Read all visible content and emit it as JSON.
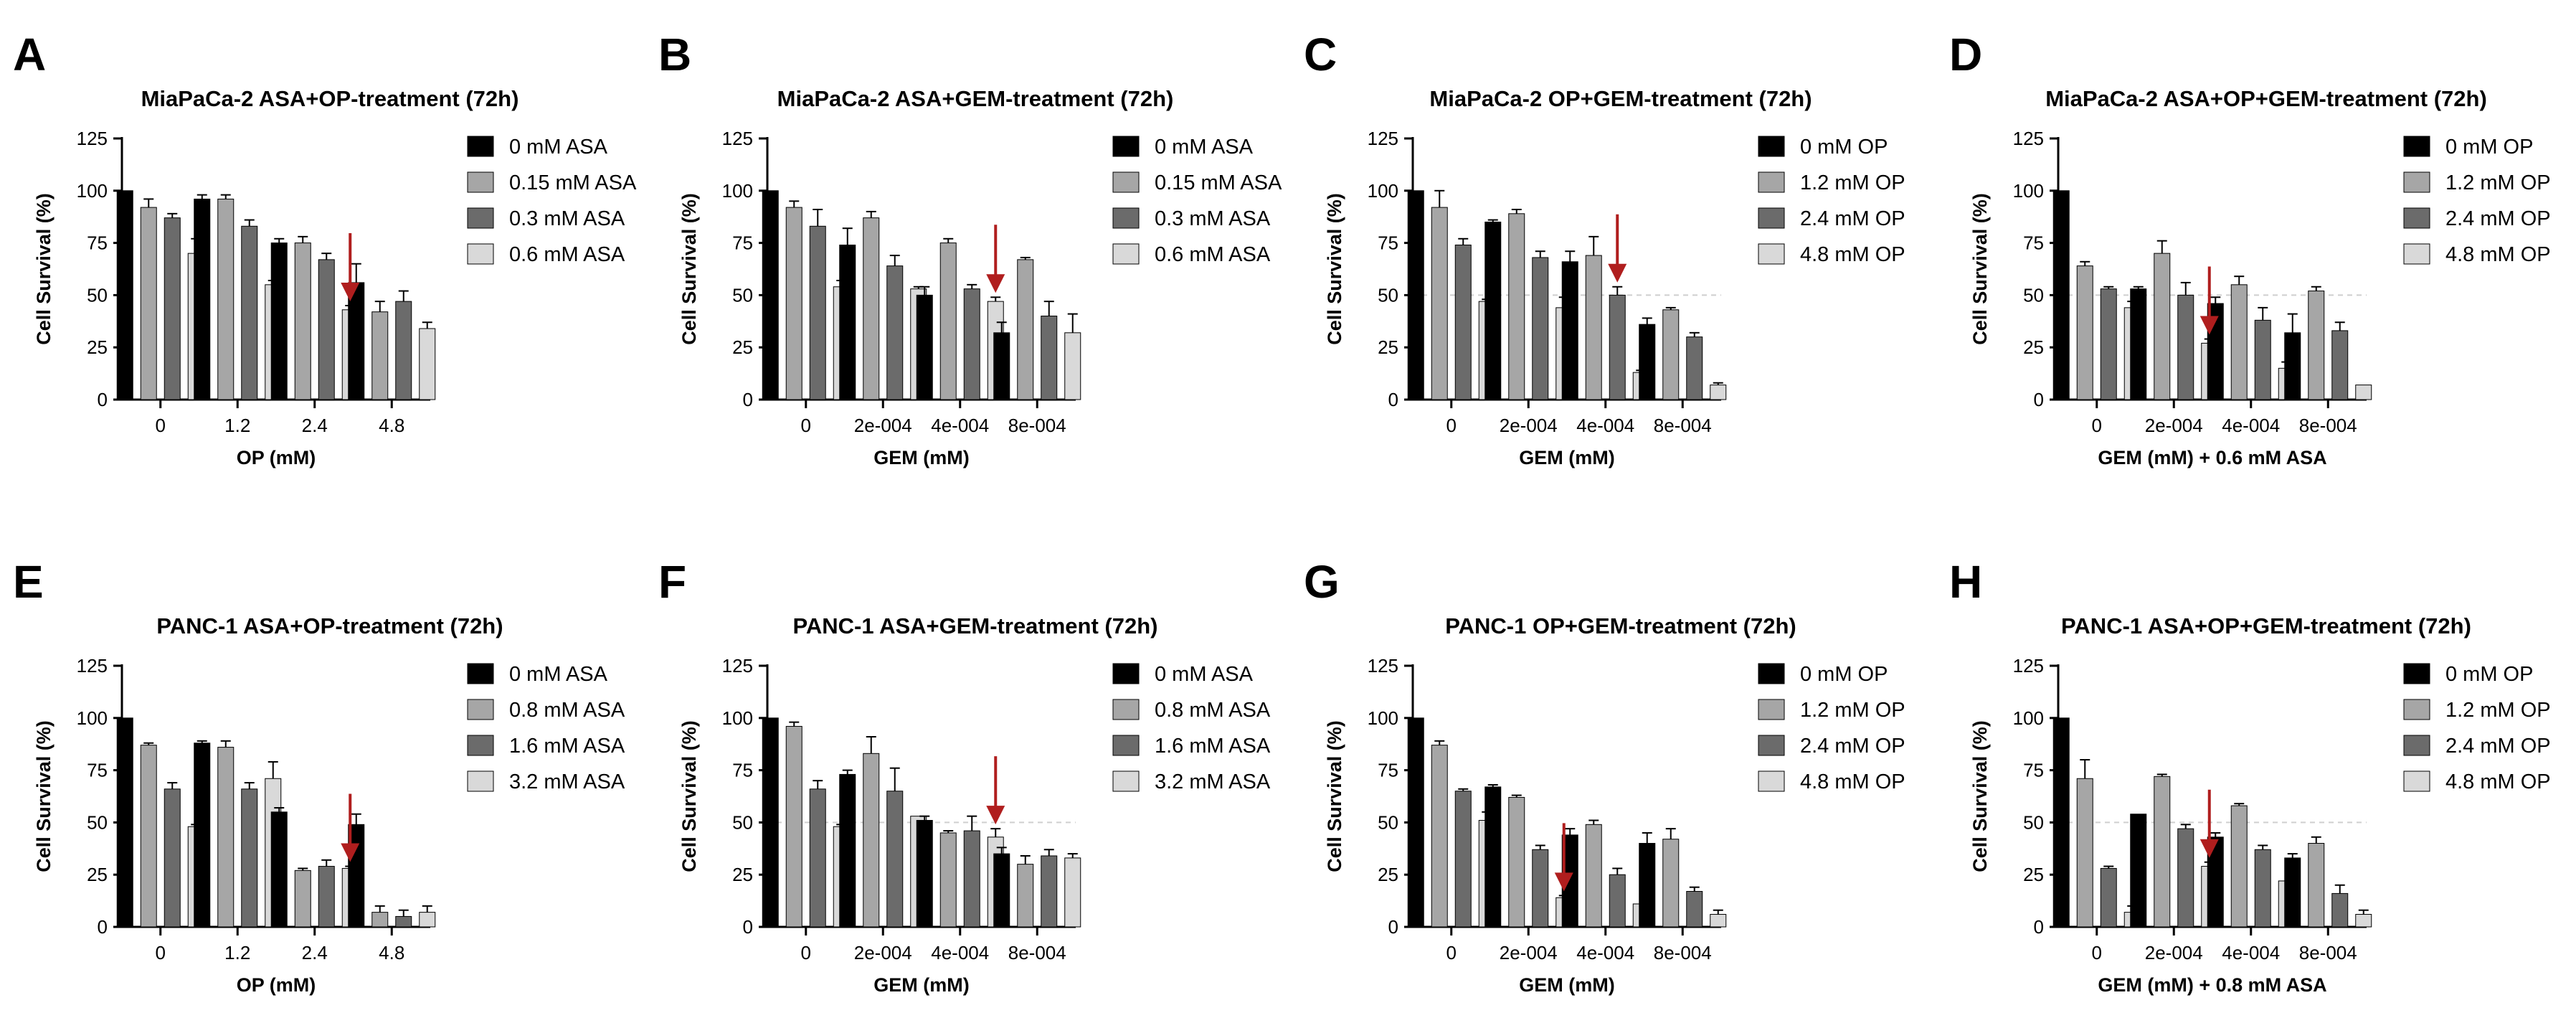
{
  "figure": {
    "panel_count": 8
  },
  "colors": {
    "series": [
      "#000000",
      "#a6a6a6",
      "#6b6b6b",
      "#d9d9d9"
    ],
    "arrow": "#b01e1e",
    "reference_line": "#cfcfcf"
  },
  "chart_data": [
    {
      "panel": "A",
      "type": "bar",
      "title": "MiaPaCa-2 ASA+OP-treatment (72h)",
      "xlabel": "OP (mM)",
      "ylabel": "Cell Survival (%)",
      "ylim": [
        0,
        125
      ],
      "yticks": [
        "0",
        "25",
        "50",
        "75",
        "100",
        "125"
      ],
      "categories": [
        "0",
        "1.2",
        "2.4",
        "4.8"
      ],
      "series": [
        {
          "name": "0 mM ASA",
          "values": [
            100,
            96,
            75,
            56
          ],
          "errors": [
            0,
            2,
            2,
            9
          ]
        },
        {
          "name": "0.15 mM ASA",
          "values": [
            92,
            96,
            75,
            42
          ],
          "errors": [
            4,
            2,
            3,
            5
          ]
        },
        {
          "name": "0.3 mM ASA",
          "values": [
            87,
            83,
            67,
            47
          ],
          "errors": [
            2,
            3,
            3,
            5
          ]
        },
        {
          "name": "0.6 mM ASA",
          "values": [
            70,
            55,
            43,
            34
          ],
          "errors": [
            7,
            2,
            2,
            3
          ]
        }
      ],
      "reference_line": null,
      "arrow": {
        "category_index": 2,
        "series_index": 3
      }
    },
    {
      "panel": "B",
      "type": "bar",
      "title": "MiaPaCa-2 ASA+GEM-treatment (72h)",
      "xlabel": "GEM (mM)",
      "ylabel": "Cell Survival (%)",
      "ylim": [
        0,
        125
      ],
      "yticks": [
        "0",
        "25",
        "50",
        "75",
        "100",
        "125"
      ],
      "categories": [
        "0",
        "2e-004",
        "4e-004",
        "8e-004"
      ],
      "series": [
        {
          "name": "0 mM ASA",
          "values": [
            100,
            74,
            50,
            32
          ],
          "errors": [
            0,
            8,
            4,
            5
          ]
        },
        {
          "name": "0.15 mM ASA",
          "values": [
            92,
            87,
            75,
            67
          ],
          "errors": [
            3,
            3,
            2,
            1
          ]
        },
        {
          "name": "0.3 mM ASA",
          "values": [
            83,
            64,
            53,
            40
          ],
          "errors": [
            8,
            5,
            2,
            7
          ]
        },
        {
          "name": "0.6 mM ASA",
          "values": [
            54,
            53,
            47,
            32
          ],
          "errors": [
            3,
            1,
            2,
            9
          ]
        }
      ],
      "reference_line": null,
      "arrow": {
        "category_index": 2,
        "series_index": 3
      }
    },
    {
      "panel": "C",
      "type": "bar",
      "title": "MiaPaCa-2 OP+GEM-treatment (72h)",
      "xlabel": "GEM (mM)",
      "ylabel": "Cell Survival (%)",
      "ylim": [
        0,
        125
      ],
      "yticks": [
        "0",
        "25",
        "50",
        "75",
        "100",
        "125"
      ],
      "categories": [
        "0",
        "2e-004",
        "4e-004",
        "8e-004"
      ],
      "series": [
        {
          "name": "0 mM OP",
          "values": [
            100,
            85,
            66,
            36
          ],
          "errors": [
            0,
            1,
            5,
            3
          ]
        },
        {
          "name": "1.2 mM OP",
          "values": [
            92,
            89,
            69,
            43
          ],
          "errors": [
            8,
            2,
            9,
            1
          ]
        },
        {
          "name": "2.4 mM OP",
          "values": [
            74,
            68,
            50,
            30
          ],
          "errors": [
            3,
            3,
            4,
            2
          ]
        },
        {
          "name": "4.8 mM OP",
          "values": [
            47,
            44,
            13,
            7
          ],
          "errors": [
            1,
            5,
            1,
            1
          ]
        }
      ],
      "reference_line": 50,
      "arrow": {
        "category_index": 2,
        "series_index": 2
      }
    },
    {
      "panel": "D",
      "type": "bar",
      "title": "MiaPaCa-2 ASA+OP+GEM-treatment (72h)",
      "xlabel": "GEM (mM) + 0.6 mM ASA",
      "ylabel": "Cell Survival (%)",
      "ylim": [
        0,
        125
      ],
      "yticks": [
        "0",
        "25",
        "50",
        "75",
        "100",
        "125"
      ],
      "categories": [
        "0",
        "2e-004",
        "4e-004",
        "8e-004"
      ],
      "series": [
        {
          "name": "0 mM OP",
          "values": [
            100,
            53,
            46,
            32
          ],
          "errors": [
            0,
            1,
            3,
            9
          ]
        },
        {
          "name": "1.2 mM OP",
          "values": [
            64,
            70,
            55,
            52
          ],
          "errors": [
            2,
            6,
            4,
            2
          ]
        },
        {
          "name": "2.4 mM OP",
          "values": [
            53,
            50,
            38,
            33
          ],
          "errors": [
            1,
            6,
            6,
            4
          ]
        },
        {
          "name": "4.8 mM OP",
          "values": [
            44,
            27,
            15,
            7
          ],
          "errors": [
            3,
            2,
            3,
            0
          ]
        }
      ],
      "reference_line": 50,
      "arrow": {
        "category_index": 1,
        "series_index": 3
      }
    },
    {
      "panel": "E",
      "type": "bar",
      "title": "PANC-1 ASA+OP-treatment (72h)",
      "xlabel": "OP (mM)",
      "ylabel": "Cell Survival (%)",
      "ylim": [
        0,
        125
      ],
      "yticks": [
        "0",
        "25",
        "50",
        "75",
        "100",
        "125"
      ],
      "categories": [
        "0",
        "1.2",
        "2.4",
        "4.8"
      ],
      "series": [
        {
          "name": "0 mM ASA",
          "values": [
            100,
            88,
            55,
            49
          ],
          "errors": [
            0,
            1,
            2,
            5
          ]
        },
        {
          "name": "0.8 mM ASA",
          "values": [
            87,
            86,
            27,
            7
          ],
          "errors": [
            1,
            3,
            1,
            3
          ]
        },
        {
          "name": "1.6 mM ASA",
          "values": [
            66,
            66,
            29,
            5
          ],
          "errors": [
            3,
            3,
            3,
            3
          ]
        },
        {
          "name": "3.2 mM ASA",
          "values": [
            48,
            71,
            28,
            7
          ],
          "errors": [
            1,
            8,
            1,
            3
          ]
        }
      ],
      "reference_line": null,
      "arrow": {
        "category_index": 2,
        "series_index": 3
      }
    },
    {
      "panel": "F",
      "type": "bar",
      "title": "PANC-1 ASA+GEM-treatment (72h)",
      "xlabel": "GEM (mM)",
      "ylabel": "Cell Survival (%)",
      "ylim": [
        0,
        125
      ],
      "yticks": [
        "0",
        "25",
        "50",
        "75",
        "100",
        "125"
      ],
      "categories": [
        "0",
        "2e-004",
        "4e-004",
        "8e-004"
      ],
      "series": [
        {
          "name": "0 mM ASA",
          "values": [
            100,
            73,
            51,
            35
          ],
          "errors": [
            0,
            2,
            2,
            3
          ]
        },
        {
          "name": "0.8 mM ASA",
          "values": [
            96,
            83,
            45,
            30
          ],
          "errors": [
            2,
            8,
            1,
            4
          ]
        },
        {
          "name": "1.6 mM ASA",
          "values": [
            66,
            65,
            46,
            34
          ],
          "errors": [
            4,
            11,
            7,
            3
          ]
        },
        {
          "name": "3.2 mM ASA",
          "values": [
            48,
            53,
            43,
            33
          ],
          "errors": [
            1,
            0,
            4,
            2
          ]
        }
      ],
      "reference_line": 50,
      "arrow": {
        "category_index": 2,
        "series_index": 3
      }
    },
    {
      "panel": "G",
      "type": "bar",
      "title": "PANC-1 OP+GEM-treatment (72h)",
      "xlabel": "GEM (mM)",
      "ylabel": "Cell Survival (%)",
      "ylim": [
        0,
        125
      ],
      "yticks": [
        "0",
        "25",
        "50",
        "75",
        "100",
        "125"
      ],
      "categories": [
        "0",
        "2e-004",
        "4e-004",
        "8e-004"
      ],
      "series": [
        {
          "name": "0 mM OP",
          "values": [
            100,
            67,
            44,
            40
          ],
          "errors": [
            0,
            1,
            3,
            5
          ]
        },
        {
          "name": "1.2 mM OP",
          "values": [
            87,
            62,
            49,
            42
          ],
          "errors": [
            2,
            1,
            2,
            5
          ]
        },
        {
          "name": "2.4 mM OP",
          "values": [
            65,
            37,
            25,
            17
          ],
          "errors": [
            1,
            2,
            3,
            2
          ]
        },
        {
          "name": "4.8 mM OP",
          "values": [
            51,
            14,
            11,
            6
          ],
          "errors": [
            4,
            1,
            0,
            2
          ]
        }
      ],
      "reference_line": null,
      "arrow": {
        "category_index": 1,
        "series_index": 3
      }
    },
    {
      "panel": "H",
      "type": "bar",
      "title": "PANC-1 ASA+OP+GEM-treatment (72h)",
      "xlabel": "GEM (mM) + 0.8 mM ASA",
      "ylabel": "Cell Survival (%)",
      "ylim": [
        0,
        125
      ],
      "yticks": [
        "0",
        "25",
        "50",
        "75",
        "100",
        "125"
      ],
      "categories": [
        "0",
        "2e-004",
        "4e-004",
        "8e-004"
      ],
      "series": [
        {
          "name": "0 mM OP",
          "values": [
            100,
            54,
            43,
            33
          ],
          "errors": [
            0,
            0,
            2,
            2
          ]
        },
        {
          "name": "1.2 mM OP",
          "values": [
            71,
            72,
            58,
            40
          ],
          "errors": [
            9,
            1,
            1,
            3
          ]
        },
        {
          "name": "2.4 mM OP",
          "values": [
            28,
            47,
            37,
            16
          ],
          "errors": [
            1,
            2,
            2,
            4
          ]
        },
        {
          "name": "4.8 mM OP",
          "values": [
            7,
            29,
            22,
            6
          ],
          "errors": [
            3,
            2,
            0,
            2
          ]
        }
      ],
      "reference_line": 50,
      "arrow": {
        "category_index": 1,
        "series_index": 3
      }
    }
  ]
}
